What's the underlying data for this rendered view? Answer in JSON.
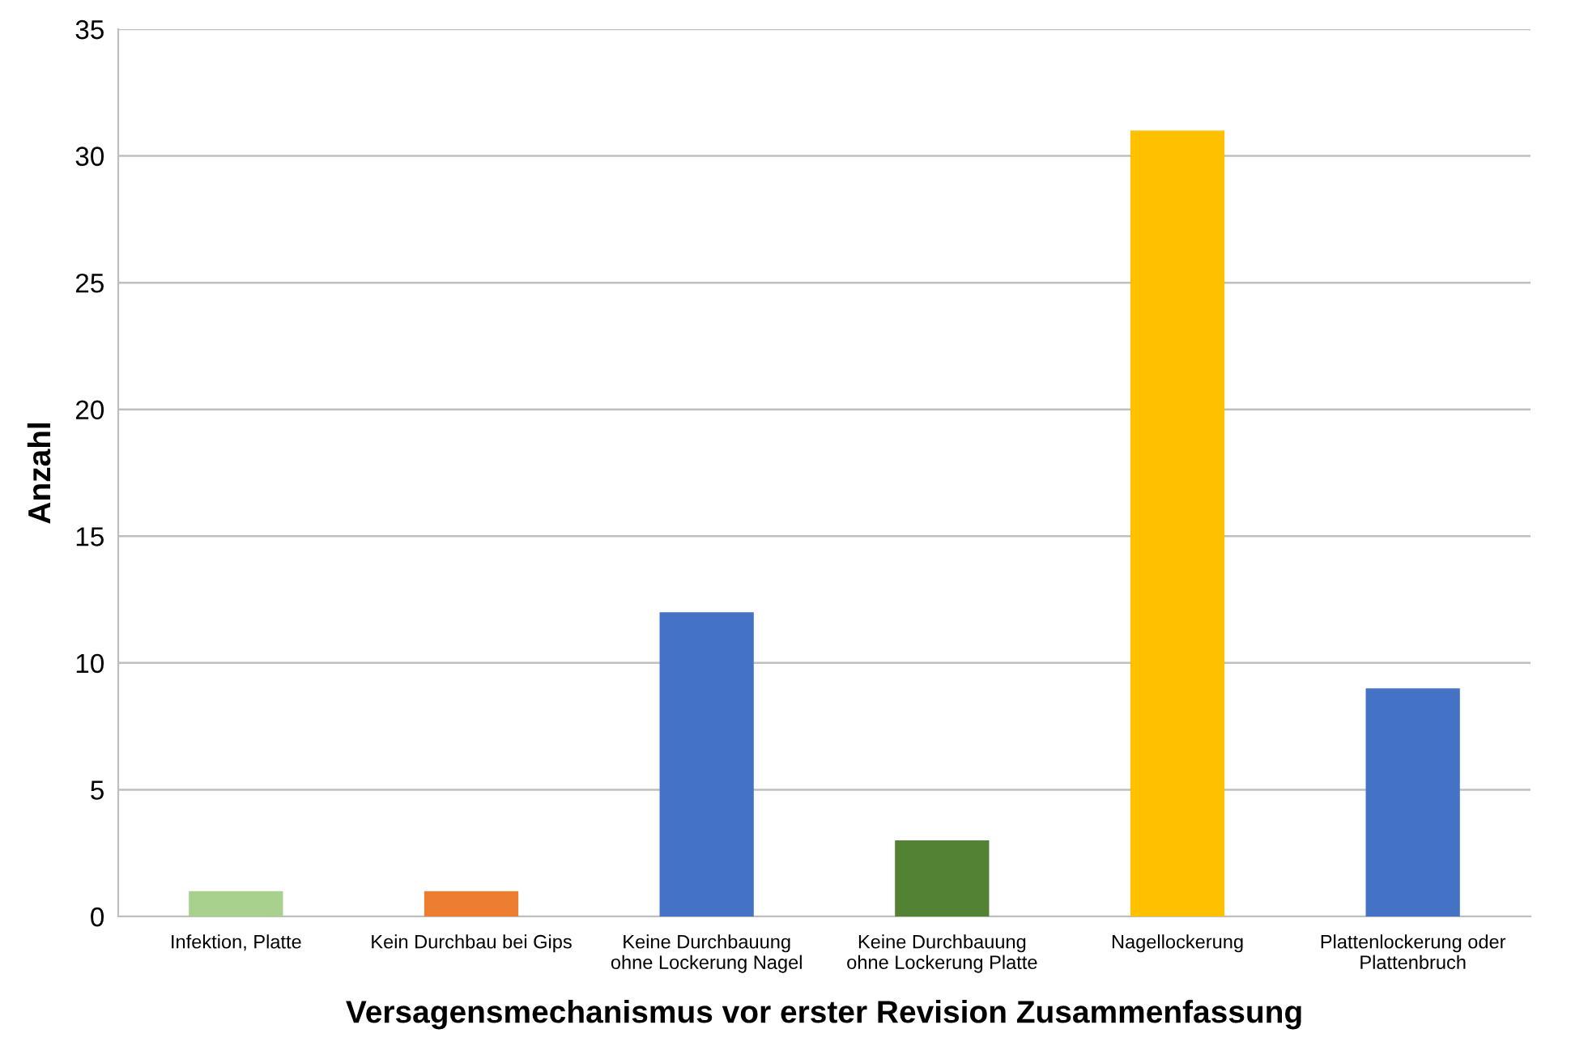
{
  "chart_data": {
    "type": "bar",
    "xlabel": "Versagensmechanismus vor erster Revision Zusammenfassung",
    "ylabel": "Anzahl",
    "categories": [
      "Infektion, Platte",
      "Kein Durchbau bei Gips",
      "Keine Durchbauung\nohne Lockerung Nagel",
      "Keine Durchbauung\nohne Lockerung Platte",
      "Nagellockerung",
      "Plattenlockerung oder\nPlattenbruch"
    ],
    "values": [
      1,
      1,
      12,
      3,
      31,
      9
    ],
    "colors": [
      "#a9d18e",
      "#ed7d31",
      "#4472c4",
      "#548235",
      "#ffc000",
      "#4472c4"
    ],
    "ylim": [
      0,
      35
    ],
    "yticks": [
      0,
      5,
      10,
      15,
      20,
      25,
      30,
      35
    ],
    "grid": "y"
  }
}
